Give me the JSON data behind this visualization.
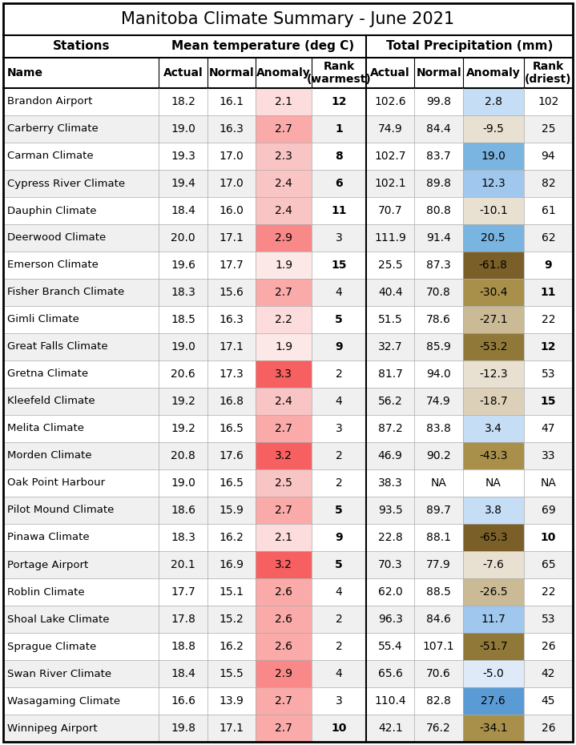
{
  "title": "Manitoba Climate Summary - June 2021",
  "rows": [
    [
      "Brandon Airport",
      18.2,
      16.1,
      2.1,
      12,
      102.6,
      99.8,
      2.8,
      102
    ],
    [
      "Carberry Climate",
      19.0,
      16.3,
      2.7,
      1,
      74.9,
      84.4,
      -9.5,
      25
    ],
    [
      "Carman Climate",
      19.3,
      17.0,
      2.3,
      8,
      102.7,
      83.7,
      19.0,
      94
    ],
    [
      "Cypress River Climate",
      19.4,
      17.0,
      2.4,
      6,
      102.1,
      89.8,
      12.3,
      82
    ],
    [
      "Dauphin Climate",
      18.4,
      16.0,
      2.4,
      11,
      70.7,
      80.8,
      -10.1,
      61
    ],
    [
      "Deerwood Climate",
      20.0,
      17.1,
      2.9,
      3,
      111.9,
      91.4,
      20.5,
      62
    ],
    [
      "Emerson Climate",
      19.6,
      17.7,
      1.9,
      15,
      25.5,
      87.3,
      -61.8,
      9
    ],
    [
      "Fisher Branch Climate",
      18.3,
      15.6,
      2.7,
      4,
      40.4,
      70.8,
      -30.4,
      11
    ],
    [
      "Gimli Climate",
      18.5,
      16.3,
      2.2,
      5,
      51.5,
      78.6,
      -27.1,
      22
    ],
    [
      "Great Falls Climate",
      19.0,
      17.1,
      1.9,
      9,
      32.7,
      85.9,
      -53.2,
      12
    ],
    [
      "Gretna Climate",
      20.6,
      17.3,
      3.3,
      2,
      81.7,
      94.0,
      -12.3,
      53
    ],
    [
      "Kleefeld Climate",
      19.2,
      16.8,
      2.4,
      4,
      56.2,
      74.9,
      -18.7,
      15
    ],
    [
      "Melita Climate",
      19.2,
      16.5,
      2.7,
      3,
      87.2,
      83.8,
      3.4,
      47
    ],
    [
      "Morden Climate",
      20.8,
      17.6,
      3.2,
      2,
      46.9,
      90.2,
      -43.3,
      33
    ],
    [
      "Oak Point Harbour",
      19.0,
      16.5,
      2.5,
      2,
      38.3,
      "NA",
      "NA",
      "NA"
    ],
    [
      "Pilot Mound Climate",
      18.6,
      15.9,
      2.7,
      5,
      93.5,
      89.7,
      3.8,
      69
    ],
    [
      "Pinawa Climate",
      18.3,
      16.2,
      2.1,
      9,
      22.8,
      88.1,
      -65.3,
      10
    ],
    [
      "Portage Airport",
      20.1,
      16.9,
      3.2,
      5,
      70.3,
      77.9,
      -7.6,
      65
    ],
    [
      "Roblin Climate",
      17.7,
      15.1,
      2.6,
      4,
      62.0,
      88.5,
      -26.5,
      22
    ],
    [
      "Shoal Lake Climate",
      17.8,
      15.2,
      2.6,
      2,
      96.3,
      84.6,
      11.7,
      53
    ],
    [
      "Sprague Climate",
      18.8,
      16.2,
      2.6,
      2,
      55.4,
      107.1,
      -51.7,
      26
    ],
    [
      "Swan River Climate",
      18.4,
      15.5,
      2.9,
      4,
      65.6,
      70.6,
      -5.0,
      42
    ],
    [
      "Wasagaming Climate",
      16.6,
      13.9,
      2.7,
      3,
      110.4,
      82.8,
      27.6,
      45
    ],
    [
      "Winnipeg Airport",
      19.8,
      17.1,
      2.7,
      10,
      42.1,
      76.2,
      -34.1,
      26
    ]
  ],
  "t_rank_bold": [
    1,
    5,
    6,
    8,
    9,
    10,
    11,
    12,
    15
  ],
  "p_rank_bold": [
    9,
    10,
    11,
    12,
    15
  ],
  "background_color": "#ffffff",
  "title_fontsize": 15,
  "group_fontsize": 11,
  "header_fontsize": 10,
  "cell_fontsize": 10,
  "name_fontsize": 9.5
}
